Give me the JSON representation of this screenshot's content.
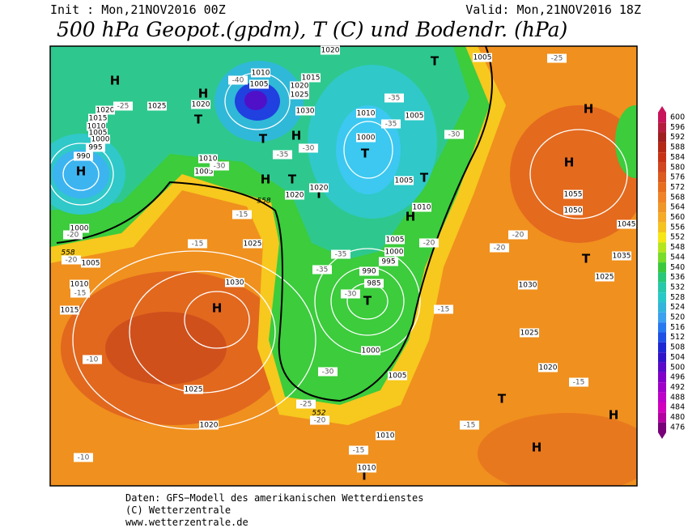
{
  "header": {
    "init": "Init : Mon,21NOV2016 00Z",
    "valid": "Valid: Mon,21NOV2016 18Z",
    "title": "500 hPa Geopot.(gpdm), T (C) und Bodendr. (hPa)"
  },
  "colorbar": {
    "labels": [
      600,
      596,
      592,
      588,
      584,
      580,
      576,
      572,
      568,
      564,
      560,
      556,
      552,
      548,
      544,
      540,
      536,
      532,
      528,
      524,
      520,
      516,
      512,
      508,
      504,
      500,
      496,
      492,
      488,
      484,
      480,
      476
    ]
  },
  "map": {
    "pressure_centers": [
      "H",
      "H",
      "T",
      "T",
      "H",
      "T",
      "T",
      "H",
      "H",
      "T",
      "H",
      "T",
      "T",
      "H",
      "H",
      "H",
      "T",
      "T",
      "T",
      "H",
      "H",
      "T"
    ],
    "isobar_labels": [
      1020,
      1010,
      1005,
      1015,
      1020,
      1025,
      1030,
      1025,
      1020,
      1020,
      1015,
      1010,
      1005,
      1000,
      995,
      990,
      1010,
      1005,
      1010,
      1005,
      1000,
      1005,
      1020,
      1020,
      1005,
      1010,
      1005,
      1000,
      995,
      990,
      985,
      1000,
      1005,
      1010,
      1010,
      1025,
      1030,
      1025,
      1020,
      1015,
      1010,
      1005,
      1000,
      1055,
      1050,
      1045,
      1035,
      1030,
      1025,
      1025,
      1020
    ],
    "temperature_labels": [
      -25,
      -40,
      -35,
      -30,
      -30,
      -35,
      -35,
      -30,
      -25,
      -15,
      -15,
      -20,
      -20,
      -15,
      -10,
      -10,
      -20,
      -20,
      -20,
      -35,
      -35,
      -30,
      -30,
      -25,
      -20,
      -15,
      -15,
      -15,
      -15
    ],
    "geopotential_labels": [
      558,
      552,
      558
    ]
  },
  "footer": {
    "source": "Daten: GFS−Modell des amerikanischen Wetterdienstes",
    "copyright": "(C) Wetterzentrale",
    "url": "www.wetterzentrale.de"
  }
}
